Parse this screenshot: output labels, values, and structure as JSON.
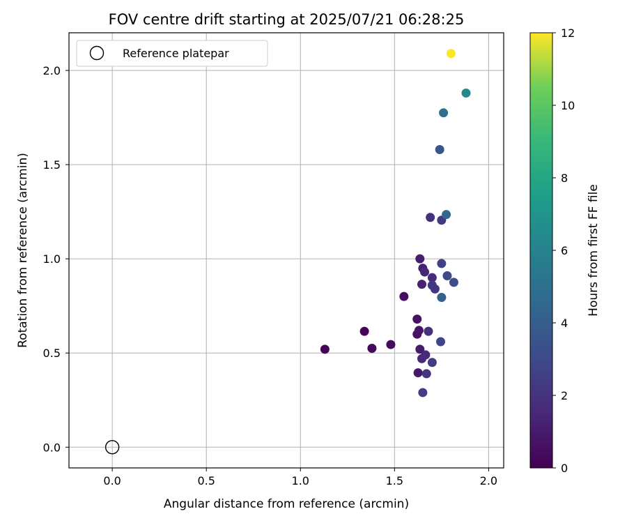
{
  "chart_data": {
    "type": "scatter",
    "title": "FOV centre drift starting at 2025/07/21 06:28:25",
    "xlabel": "Angular distance from reference (arcmin)",
    "ylabel": "Rotation from reference (arcmin)",
    "xlim": [
      -0.23,
      2.08
    ],
    "ylim": [
      -0.11,
      2.2
    ],
    "xticks": [
      0.0,
      0.5,
      1.0,
      1.5,
      2.0
    ],
    "xtick_labels": [
      "0.0",
      "0.5",
      "1.0",
      "1.5",
      "2.0"
    ],
    "yticks": [
      0.0,
      0.5,
      1.0,
      1.5,
      2.0
    ],
    "ytick_labels": [
      "0.0",
      "0.5",
      "1.0",
      "1.5",
      "2.0"
    ],
    "grid": true,
    "legend": {
      "location": "top-left",
      "entries": [
        "Reference platepar"
      ]
    },
    "reference_point": {
      "x": 0.0,
      "y": 0.0,
      "label": "Reference platepar",
      "marker": "open-circle"
    },
    "colorbar": {
      "label": "Hours from first FF file",
      "colormap": "viridis",
      "range": [
        0,
        12
      ],
      "ticks": [
        0,
        2,
        4,
        6,
        8,
        10,
        12
      ],
      "tick_labels": [
        "0",
        "2",
        "4",
        "6",
        "8",
        "10",
        "12"
      ]
    },
    "points": [
      {
        "x": 1.13,
        "y": 0.52,
        "c": 0.1
      },
      {
        "x": 1.34,
        "y": 0.615,
        "c": 0.2
      },
      {
        "x": 1.38,
        "y": 0.525,
        "c": 0.3
      },
      {
        "x": 1.48,
        "y": 0.545,
        "c": 0.4
      },
      {
        "x": 1.55,
        "y": 0.8,
        "c": 0.5
      },
      {
        "x": 1.62,
        "y": 0.6,
        "c": 0.6
      },
      {
        "x": 1.62,
        "y": 0.68,
        "c": 0.7
      },
      {
        "x": 1.63,
        "y": 0.62,
        "c": 0.8
      },
      {
        "x": 1.625,
        "y": 0.395,
        "c": 0.9
      },
      {
        "x": 1.635,
        "y": 0.52,
        "c": 1.0
      },
      {
        "x": 1.635,
        "y": 1.0,
        "c": 1.1
      },
      {
        "x": 1.65,
        "y": 0.95,
        "c": 1.2
      },
      {
        "x": 1.645,
        "y": 0.865,
        "c": 1.3
      },
      {
        "x": 1.66,
        "y": 0.93,
        "c": 1.4
      },
      {
        "x": 1.645,
        "y": 0.47,
        "c": 1.5
      },
      {
        "x": 1.665,
        "y": 0.49,
        "c": 1.6
      },
      {
        "x": 1.7,
        "y": 0.9,
        "c": 1.7
      },
      {
        "x": 1.68,
        "y": 0.615,
        "c": 1.8
      },
      {
        "x": 1.69,
        "y": 1.22,
        "c": 1.9
      },
      {
        "x": 1.67,
        "y": 0.39,
        "c": 2.0
      },
      {
        "x": 1.7,
        "y": 0.86,
        "c": 2.1
      },
      {
        "x": 1.715,
        "y": 0.84,
        "c": 2.2
      },
      {
        "x": 1.75,
        "y": 1.205,
        "c": 2.3
      },
      {
        "x": 1.7,
        "y": 0.45,
        "c": 2.4
      },
      {
        "x": 1.65,
        "y": 0.29,
        "c": 2.5
      },
      {
        "x": 1.75,
        "y": 0.975,
        "c": 2.6
      },
      {
        "x": 1.745,
        "y": 0.56,
        "c": 2.8
      },
      {
        "x": 1.78,
        "y": 0.91,
        "c": 3.0
      },
      {
        "x": 1.815,
        "y": 0.875,
        "c": 3.2
      },
      {
        "x": 1.74,
        "y": 1.58,
        "c": 3.6
      },
      {
        "x": 1.75,
        "y": 0.795,
        "c": 4.2
      },
      {
        "x": 1.775,
        "y": 1.235,
        "c": 4.5
      },
      {
        "x": 1.76,
        "y": 1.775,
        "c": 5.0
      },
      {
        "x": 1.88,
        "y": 1.88,
        "c": 6.3
      },
      {
        "x": 1.8,
        "y": 2.09,
        "c": 12.0
      }
    ]
  }
}
